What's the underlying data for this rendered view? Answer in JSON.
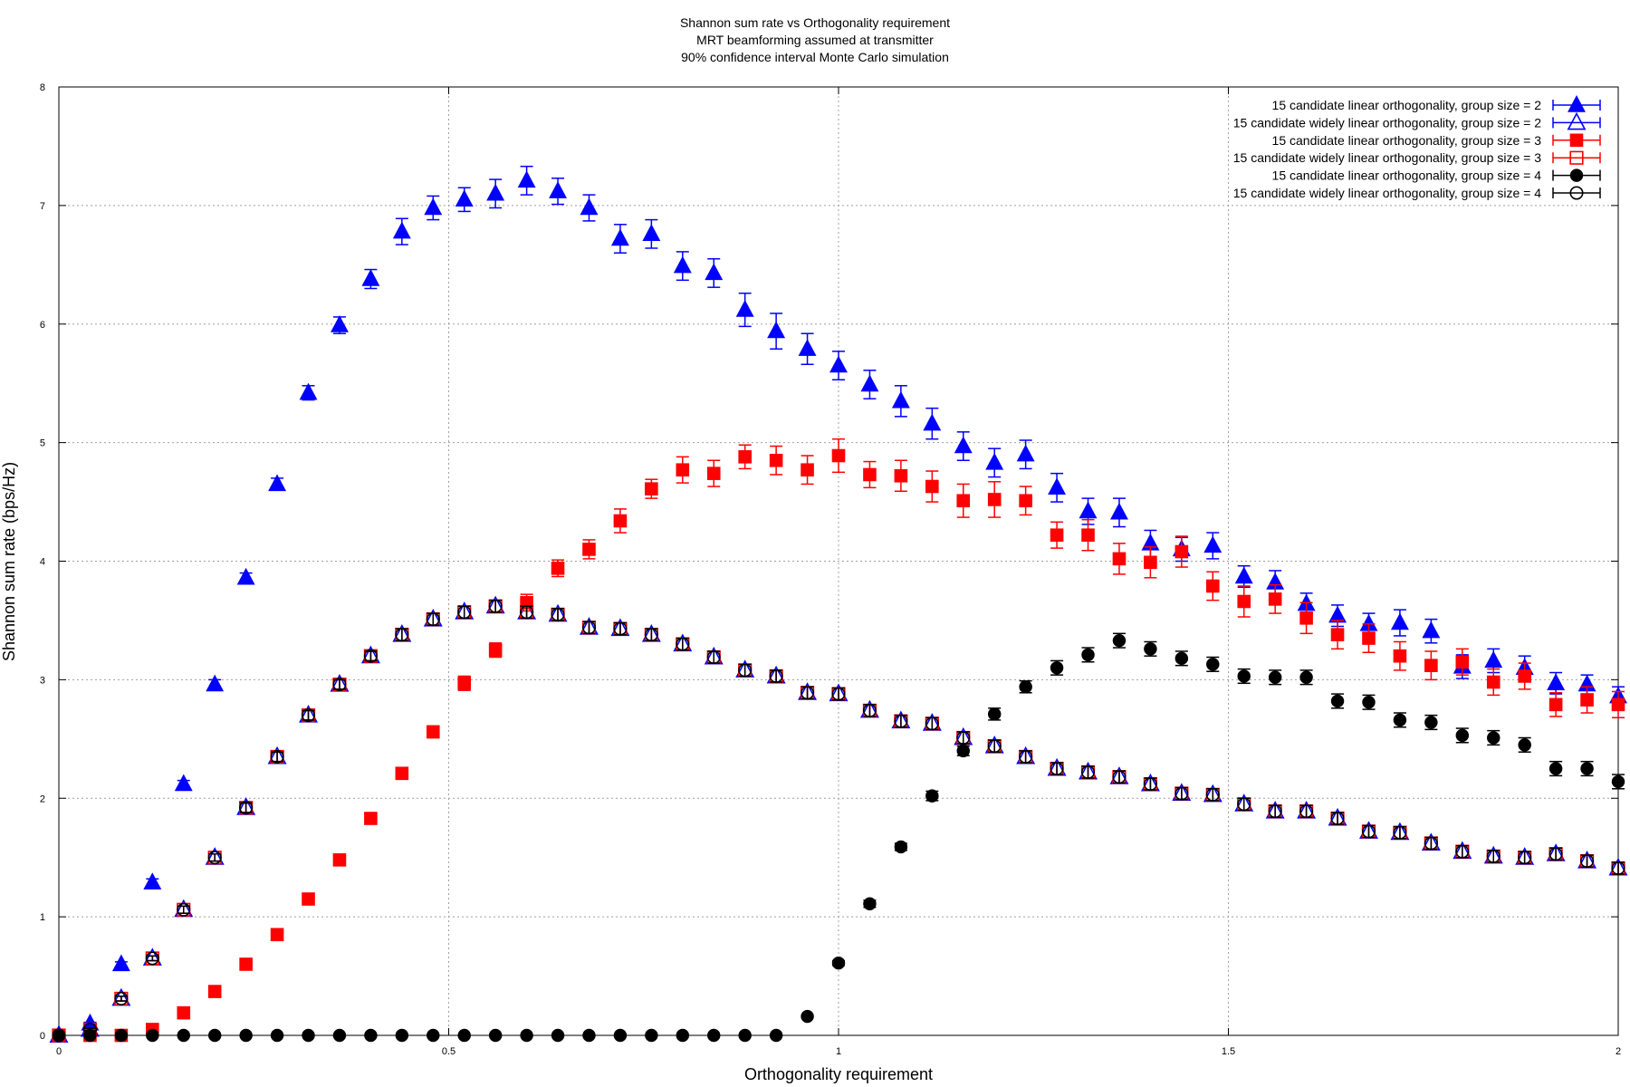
{
  "chart_data": {
    "type": "scatter",
    "title": [
      "Shannon sum rate vs Orthogonality requirement",
      "MRT beamforming assumed at transmitter",
      "90% confidence interval Monte Carlo simulation"
    ],
    "xlabel": "Orthogonality requirement",
    "ylabel": "Shannon sum rate (bps/Hz)",
    "xlim": [
      0,
      2
    ],
    "ylim": [
      0,
      8
    ],
    "xticks": [
      0,
      0.5,
      1,
      1.5,
      2
    ],
    "xtick_labels": [
      "0",
      "0.5",
      "1",
      "1.5",
      "2"
    ],
    "yticks": [
      0,
      1,
      2,
      3,
      4,
      5,
      6,
      7,
      8
    ],
    "ytick_labels": [
      "0",
      "1",
      "2",
      "3",
      "4",
      "5",
      "6",
      "7",
      "8"
    ],
    "grid": true,
    "legend_position": "top-right",
    "error_bars": "90% confidence interval",
    "x": [
      0,
      0.04,
      0.08,
      0.12,
      0.16,
      0.2,
      0.24,
      0.28,
      0.32,
      0.36,
      0.4,
      0.44,
      0.48,
      0.52,
      0.56,
      0.6,
      0.64,
      0.68,
      0.72,
      0.76,
      0.8,
      0.84,
      0.88,
      0.92,
      0.96,
      1.0,
      1.04,
      1.08,
      1.12,
      1.16,
      1.2,
      1.24,
      1.28,
      1.32,
      1.36,
      1.4,
      1.44,
      1.48,
      1.52,
      1.56,
      1.6,
      1.64,
      1.68,
      1.72,
      1.76,
      1.8,
      1.84,
      1.88,
      1.92,
      1.96,
      2.0
    ],
    "series": [
      {
        "name": "15 candidate linear orthogonality, group size = 2",
        "color": "#0000ff",
        "marker": "triangle",
        "filled": true,
        "values": [
          0.0,
          0.1,
          0.6,
          1.29,
          2.12,
          2.96,
          3.86,
          4.65,
          5.42,
          5.99,
          6.38,
          6.78,
          6.98,
          7.05,
          7.1,
          7.21,
          7.12,
          6.98,
          6.72,
          6.76,
          6.49,
          6.43,
          6.12,
          5.94,
          5.79,
          5.65,
          5.49,
          5.35,
          5.16,
          4.97,
          4.83,
          4.9,
          4.62,
          4.42,
          4.41,
          4.15,
          4.1,
          4.13,
          3.87,
          3.82,
          3.64,
          3.54,
          3.47,
          3.48,
          3.41,
          3.11,
          3.16,
          3.1,
          2.97,
          2.96,
          2.86
        ],
        "errors": [
          0,
          0.01,
          0.02,
          0.03,
          0.03,
          0.04,
          0.04,
          0.05,
          0.06,
          0.07,
          0.08,
          0.11,
          0.1,
          0.1,
          0.12,
          0.12,
          0.11,
          0.11,
          0.12,
          0.12,
          0.12,
          0.12,
          0.14,
          0.15,
          0.13,
          0.12,
          0.12,
          0.13,
          0.13,
          0.12,
          0.12,
          0.12,
          0.12,
          0.11,
          0.12,
          0.11,
          0.1,
          0.11,
          0.09,
          0.1,
          0.09,
          0.09,
          0.09,
          0.11,
          0.1,
          0.1,
          0.1,
          0.1,
          0.09,
          0.08,
          0.08
        ]
      },
      {
        "name": "15 candidate widely linear orthogonality, group size = 2",
        "color": "#0000ff",
        "marker": "triangle",
        "filled": false,
        "values": [
          0.0,
          0.05,
          0.31,
          0.65,
          1.06,
          1.5,
          1.92,
          2.35,
          2.7,
          2.96,
          3.2,
          3.38,
          3.51,
          3.57,
          3.62,
          3.57,
          3.55,
          3.44,
          3.43,
          3.38,
          3.3,
          3.19,
          3.08,
          3.03,
          2.89,
          2.88,
          2.74,
          2.65,
          2.63,
          2.51,
          2.44,
          2.35,
          2.25,
          2.22,
          2.18,
          2.12,
          2.04,
          2.03,
          1.95,
          1.89,
          1.89,
          1.83,
          1.72,
          1.71,
          1.62,
          1.55,
          1.51,
          1.5,
          1.53,
          1.47,
          1.41
        ],
        "errors": [
          0,
          0.01,
          0.02,
          0.02,
          0.03,
          0.03,
          0.04,
          0.04,
          0.04,
          0.04,
          0.04,
          0.05,
          0.05,
          0.05,
          0.05,
          0.05,
          0.05,
          0.05,
          0.05,
          0.05,
          0.05,
          0.05,
          0.05,
          0.05,
          0.05,
          0.05,
          0.05,
          0.05,
          0.05,
          0.05,
          0.05,
          0.05,
          0.05,
          0.05,
          0.05,
          0.05,
          0.05,
          0.05,
          0.05,
          0.05,
          0.05,
          0.05,
          0.05,
          0.05,
          0.05,
          0.05,
          0.05,
          0.05,
          0.05,
          0.05,
          0.05
        ]
      },
      {
        "name": "15 candidate linear orthogonality, group size = 3",
        "color": "#ff0000",
        "marker": "square",
        "filled": true,
        "values": [
          0.0,
          0.0,
          0.0,
          0.05,
          0.19,
          0.37,
          0.6,
          0.85,
          1.15,
          1.48,
          1.83,
          2.21,
          2.56,
          2.97,
          3.25,
          3.65,
          3.94,
          4.1,
          4.34,
          4.61,
          4.77,
          4.74,
          4.88,
          4.85,
          4.77,
          4.89,
          4.73,
          4.72,
          4.63,
          4.51,
          4.52,
          4.51,
          4.22,
          4.22,
          4.02,
          3.99,
          4.08,
          3.79,
          3.66,
          3.68,
          3.52,
          3.38,
          3.35,
          3.2,
          3.12,
          3.15,
          2.98,
          3.03,
          2.79,
          2.83,
          2.79
        ],
        "errors": [
          0,
          0,
          0,
          0.01,
          0.01,
          0.02,
          0.02,
          0.03,
          0.03,
          0.04,
          0.04,
          0.05,
          0.05,
          0.06,
          0.06,
          0.07,
          0.07,
          0.08,
          0.1,
          0.08,
          0.11,
          0.11,
          0.1,
          0.12,
          0.12,
          0.14,
          0.11,
          0.13,
          0.13,
          0.14,
          0.15,
          0.12,
          0.11,
          0.13,
          0.13,
          0.13,
          0.13,
          0.12,
          0.13,
          0.12,
          0.13,
          0.12,
          0.12,
          0.12,
          0.12,
          0.11,
          0.11,
          0.11,
          0.1,
          0.11,
          0.11
        ]
      },
      {
        "name": "15 candidate widely linear orthogonality, group size = 3",
        "color": "#ff0000",
        "marker": "square",
        "filled": false,
        "values": [
          0.0,
          0.05,
          0.31,
          0.65,
          1.06,
          1.5,
          1.92,
          2.35,
          2.7,
          2.96,
          3.2,
          3.38,
          3.51,
          3.57,
          3.62,
          3.57,
          3.55,
          3.44,
          3.43,
          3.38,
          3.3,
          3.19,
          3.08,
          3.03,
          2.89,
          2.88,
          2.74,
          2.65,
          2.63,
          2.51,
          2.44,
          2.35,
          2.25,
          2.22,
          2.18,
          2.12,
          2.04,
          2.03,
          1.95,
          1.89,
          1.89,
          1.83,
          1.72,
          1.71,
          1.62,
          1.55,
          1.51,
          1.5,
          1.53,
          1.47,
          1.41
        ],
        "errors": [
          0,
          0.01,
          0.02,
          0.02,
          0.03,
          0.03,
          0.04,
          0.04,
          0.04,
          0.04,
          0.04,
          0.05,
          0.05,
          0.05,
          0.05,
          0.05,
          0.05,
          0.05,
          0.05,
          0.05,
          0.05,
          0.05,
          0.05,
          0.05,
          0.05,
          0.05,
          0.05,
          0.05,
          0.05,
          0.05,
          0.05,
          0.05,
          0.05,
          0.05,
          0.05,
          0.05,
          0.05,
          0.05,
          0.05,
          0.05,
          0.05,
          0.05,
          0.05,
          0.05,
          0.05,
          0.05,
          0.05,
          0.05,
          0.05,
          0.05,
          0.05
        ]
      },
      {
        "name": "15 candidate linear orthogonality, group size = 4",
        "color": "#000000",
        "marker": "circle",
        "filled": true,
        "values": [
          0.0,
          0.0,
          0.0,
          0.0,
          0.0,
          0.0,
          0.0,
          0.0,
          0.0,
          0.0,
          0.0,
          0.0,
          0.0,
          0.0,
          0.0,
          0.0,
          0.0,
          0.0,
          0.0,
          0.0,
          0.0,
          0.0,
          0.0,
          0.0,
          0.16,
          0.61,
          1.11,
          1.59,
          2.02,
          2.4,
          2.71,
          2.94,
          3.1,
          3.21,
          3.33,
          3.26,
          3.18,
          3.13,
          3.03,
          3.02,
          3.02,
          2.82,
          2.81,
          2.66,
          2.64,
          2.53,
          2.51,
          2.45,
          2.25,
          2.25,
          2.14
        ],
        "errors": [
          0,
          0,
          0,
          0,
          0,
          0,
          0,
          0,
          0,
          0,
          0,
          0,
          0,
          0,
          0,
          0,
          0,
          0,
          0,
          0,
          0,
          0,
          0,
          0,
          0.01,
          0.02,
          0.03,
          0.03,
          0.04,
          0.04,
          0.05,
          0.05,
          0.06,
          0.06,
          0.06,
          0.06,
          0.06,
          0.06,
          0.06,
          0.06,
          0.06,
          0.06,
          0.06,
          0.06,
          0.06,
          0.06,
          0.06,
          0.06,
          0.06,
          0.06,
          0.06
        ]
      },
      {
        "name": "15 candidate widely linear orthogonality, group size = 4",
        "color": "#000000",
        "marker": "circle",
        "filled": false,
        "values": [
          0.0,
          0.05,
          0.31,
          0.65,
          1.06,
          1.5,
          1.92,
          2.35,
          2.7,
          2.96,
          3.2,
          3.38,
          3.51,
          3.57,
          3.62,
          3.57,
          3.55,
          3.44,
          3.43,
          3.38,
          3.3,
          3.19,
          3.08,
          3.03,
          2.89,
          2.88,
          2.74,
          2.65,
          2.63,
          2.51,
          2.44,
          2.35,
          2.25,
          2.22,
          2.18,
          2.12,
          2.04,
          2.03,
          1.95,
          1.89,
          1.89,
          1.83,
          1.72,
          1.71,
          1.62,
          1.55,
          1.51,
          1.5,
          1.53,
          1.47,
          1.41
        ],
        "errors": [
          0,
          0.01,
          0.02,
          0.02,
          0.03,
          0.03,
          0.04,
          0.04,
          0.04,
          0.04,
          0.04,
          0.05,
          0.05,
          0.05,
          0.05,
          0.05,
          0.05,
          0.05,
          0.05,
          0.05,
          0.05,
          0.05,
          0.05,
          0.05,
          0.05,
          0.05,
          0.05,
          0.05,
          0.05,
          0.05,
          0.05,
          0.05,
          0.05,
          0.05,
          0.05,
          0.05,
          0.05,
          0.05,
          0.05,
          0.05,
          0.05,
          0.05,
          0.05,
          0.05,
          0.05,
          0.05,
          0.05,
          0.05,
          0.05,
          0.05,
          0.05
        ]
      }
    ]
  }
}
